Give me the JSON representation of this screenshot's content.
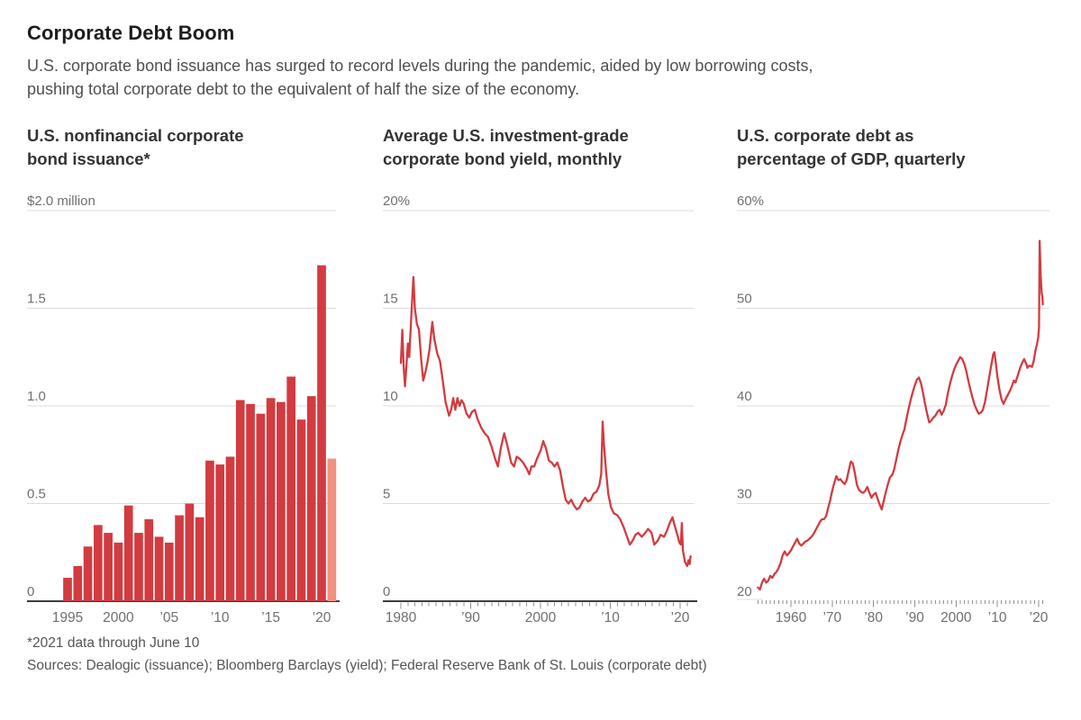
{
  "header": {
    "title": "Corporate Debt Boom",
    "subtitle_line1": "U.S. corporate bond issuance has surged to record levels during the pandemic, aided by low borrowing costs,",
    "subtitle_line2": "pushing total corporate debt to the equivalent of half the size of the economy."
  },
  "footer": {
    "footnote": "*2021 data through June 10",
    "sources": "Sources: Dealogic (issuance); Bloomberg Barclays (yield); Federal Reserve Bank of St. Louis (corporate debt)"
  },
  "colors": {
    "red": "#d23b40",
    "light_red": "#f2917f",
    "gridline": "#dcdcdc",
    "axis": "#3d3d3d",
    "tick": "#8e8e8e",
    "label": "#6f6f6f"
  },
  "chart_data": [
    {
      "type": "bar",
      "title": "U.S. nonfinancial corporate bond issuance*",
      "title_lines": [
        "U.S. nonfinancial corporate",
        "bond issuance*"
      ],
      "unit_label": "$2.0 million",
      "ylim": [
        0,
        2.0
      ],
      "yticks": [
        {
          "v": 0,
          "t": "0"
        },
        {
          "v": 0.5,
          "t": "0.5"
        },
        {
          "v": 1.0,
          "t": "1.0"
        },
        {
          "v": 1.5,
          "t": "1.5"
        },
        {
          "v": 2.0,
          "t": "$2.0 million"
        }
      ],
      "categories": [
        1995,
        1996,
        1997,
        1998,
        1999,
        2000,
        2001,
        2002,
        2003,
        2004,
        2005,
        2006,
        2007,
        2008,
        2009,
        2010,
        2011,
        2012,
        2013,
        2014,
        2015,
        2016,
        2017,
        2018,
        2019,
        2020,
        2021
      ],
      "values": [
        0.12,
        0.18,
        0.28,
        0.39,
        0.35,
        0.3,
        0.49,
        0.35,
        0.42,
        0.33,
        0.3,
        0.44,
        0.5,
        0.43,
        0.72,
        0.7,
        0.74,
        1.03,
        1.01,
        0.96,
        1.04,
        1.02,
        1.15,
        0.93,
        1.05,
        1.72,
        0.73
      ],
      "xticks": [
        {
          "i": 0,
          "t": "1995"
        },
        {
          "i": 5,
          "t": "2000"
        },
        {
          "i": 10,
          "t": "’05"
        },
        {
          "i": 15,
          "t": "’10"
        },
        {
          "i": 20,
          "t": "’15"
        },
        {
          "i": 25,
          "t": "’20"
        }
      ],
      "highlight_last_bar": true,
      "note": "2021 bar (partial year) shown in lighter red"
    },
    {
      "type": "line",
      "title": "Average U.S. investment-grade corporate bond yield, monthly",
      "title_lines": [
        "Average U.S. investment-grade",
        "corporate bond yield, monthly"
      ],
      "unit_label": "20%",
      "ylim": [
        0,
        20
      ],
      "yticks": [
        {
          "v": 0,
          "t": "0"
        },
        {
          "v": 5,
          "t": "5"
        },
        {
          "v": 10,
          "t": "10"
        },
        {
          "v": 15,
          "t": "15"
        },
        {
          "v": 20,
          "t": "20%"
        }
      ],
      "xlim": [
        1980,
        2021.5
      ],
      "xticks": [
        {
          "x": 1980,
          "t": "1980"
        },
        {
          "x": 1990,
          "t": "’90"
        },
        {
          "x": 2000,
          "t": "2000"
        },
        {
          "x": 2010,
          "t": "’10"
        },
        {
          "x": 2020,
          "t": "’20"
        }
      ],
      "points": [
        [
          1980.0,
          12.2
        ],
        [
          1980.2,
          13.9
        ],
        [
          1980.4,
          12.0
        ],
        [
          1980.6,
          11.0
        ],
        [
          1980.8,
          12.1
        ],
        [
          1981.0,
          13.2
        ],
        [
          1981.2,
          12.5
        ],
        [
          1981.5,
          14.6
        ],
        [
          1981.8,
          16.6
        ],
        [
          1982.0,
          15.0
        ],
        [
          1982.3,
          14.2
        ],
        [
          1982.6,
          13.9
        ],
        [
          1982.9,
          12.4
        ],
        [
          1983.2,
          11.3
        ],
        [
          1983.5,
          11.7
        ],
        [
          1983.8,
          12.2
        ],
        [
          1984.1,
          12.9
        ],
        [
          1984.5,
          14.3
        ],
        [
          1984.8,
          13.4
        ],
        [
          1985.2,
          12.7
        ],
        [
          1985.6,
          12.3
        ],
        [
          1986.0,
          11.3
        ],
        [
          1986.4,
          10.2
        ],
        [
          1986.9,
          9.5
        ],
        [
          1987.2,
          9.8
        ],
        [
          1987.5,
          10.4
        ],
        [
          1987.8,
          9.8
        ],
        [
          1988.1,
          10.4
        ],
        [
          1988.4,
          10.0
        ],
        [
          1988.7,
          10.3
        ],
        [
          1989.0,
          10.1
        ],
        [
          1989.4,
          9.6
        ],
        [
          1989.8,
          9.4
        ],
        [
          1990.2,
          9.7
        ],
        [
          1990.6,
          9.8
        ],
        [
          1991.0,
          9.3
        ],
        [
          1991.5,
          8.9
        ],
        [
          1992.0,
          8.6
        ],
        [
          1992.5,
          8.4
        ],
        [
          1993.0,
          7.9
        ],
        [
          1993.5,
          7.3
        ],
        [
          1993.9,
          6.9
        ],
        [
          1994.3,
          7.8
        ],
        [
          1994.8,
          8.6
        ],
        [
          1995.3,
          7.9
        ],
        [
          1995.8,
          7.1
        ],
        [
          1996.2,
          6.9
        ],
        [
          1996.6,
          7.4
        ],
        [
          1997.0,
          7.3
        ],
        [
          1997.5,
          7.1
        ],
        [
          1998.0,
          6.8
        ],
        [
          1998.4,
          6.5
        ],
        [
          1998.7,
          6.9
        ],
        [
          1999.1,
          6.9
        ],
        [
          1999.5,
          7.3
        ],
        [
          2000.0,
          7.7
        ],
        [
          2000.4,
          8.2
        ],
        [
          2000.8,
          7.8
        ],
        [
          2001.2,
          7.2
        ],
        [
          2001.6,
          7.1
        ],
        [
          2002.0,
          6.9
        ],
        [
          2002.4,
          7.1
        ],
        [
          2002.8,
          6.7
        ],
        [
          2003.2,
          5.9
        ],
        [
          2003.6,
          5.2
        ],
        [
          2004.0,
          5.0
        ],
        [
          2004.4,
          5.2
        ],
        [
          2004.8,
          4.9
        ],
        [
          2005.2,
          4.7
        ],
        [
          2005.6,
          4.8
        ],
        [
          2006.0,
          5.1
        ],
        [
          2006.4,
          5.3
        ],
        [
          2006.8,
          5.1
        ],
        [
          2007.2,
          5.2
        ],
        [
          2007.6,
          5.5
        ],
        [
          2008.0,
          5.6
        ],
        [
          2008.4,
          5.9
        ],
        [
          2008.7,
          6.5
        ],
        [
          2008.9,
          9.2
        ],
        [
          2009.1,
          8.0
        ],
        [
          2009.4,
          6.6
        ],
        [
          2009.7,
          5.5
        ],
        [
          2010.1,
          4.8
        ],
        [
          2010.5,
          4.5
        ],
        [
          2011.0,
          4.4
        ],
        [
          2011.4,
          4.2
        ],
        [
          2011.9,
          3.8
        ],
        [
          2012.3,
          3.4
        ],
        [
          2012.8,
          2.9
        ],
        [
          2013.2,
          3.1
        ],
        [
          2013.6,
          3.4
        ],
        [
          2014.0,
          3.5
        ],
        [
          2014.5,
          3.3
        ],
        [
          2015.0,
          3.5
        ],
        [
          2015.4,
          3.7
        ],
        [
          2015.9,
          3.5
        ],
        [
          2016.3,
          2.9
        ],
        [
          2016.8,
          3.1
        ],
        [
          2017.2,
          3.4
        ],
        [
          2017.7,
          3.3
        ],
        [
          2018.1,
          3.6
        ],
        [
          2018.5,
          4.0
        ],
        [
          2018.9,
          4.3
        ],
        [
          2019.2,
          3.9
        ],
        [
          2019.6,
          3.4
        ],
        [
          2019.9,
          3.0
        ],
        [
          2020.1,
          2.9
        ],
        [
          2020.25,
          4.0
        ],
        [
          2020.4,
          2.6
        ],
        [
          2020.7,
          2.0
        ],
        [
          2021.0,
          1.8
        ],
        [
          2021.2,
          2.1
        ],
        [
          2021.35,
          1.9
        ],
        [
          2021.5,
          2.3
        ]
      ]
    },
    {
      "type": "line",
      "title": "U.S. corporate debt as percentage of GDP, quarterly",
      "title_lines": [
        "U.S. corporate debt as",
        "percentage of GDP, quarterly"
      ],
      "unit_label": "60%",
      "ylim": [
        20,
        60
      ],
      "yticks": [
        {
          "v": 20,
          "t": "20"
        },
        {
          "v": 30,
          "t": "30"
        },
        {
          "v": 40,
          "t": "40"
        },
        {
          "v": 50,
          "t": "50"
        },
        {
          "v": 60,
          "t": "60%"
        }
      ],
      "xlim": [
        1952,
        2021
      ],
      "xticks": [
        {
          "x": 1960,
          "t": "1960"
        },
        {
          "x": 1970,
          "t": "’70"
        },
        {
          "x": 1980,
          "t": "’80"
        },
        {
          "x": 1990,
          "t": "’90"
        },
        {
          "x": 2000,
          "t": "2000"
        },
        {
          "x": 2010,
          "t": "’10"
        },
        {
          "x": 2020,
          "t": "’20"
        }
      ],
      "points": [
        [
          1952,
          21.4
        ],
        [
          1952.5,
          21.2
        ],
        [
          1953,
          21.9
        ],
        [
          1953.5,
          22.3
        ],
        [
          1954,
          21.9
        ],
        [
          1954.5,
          22.1
        ],
        [
          1955,
          22.6
        ],
        [
          1955.5,
          22.4
        ],
        [
          1956,
          22.8
        ],
        [
          1956.5,
          23.0
        ],
        [
          1957,
          23.4
        ],
        [
          1957.5,
          23.9
        ],
        [
          1958,
          24.7
        ],
        [
          1958.5,
          25.1
        ],
        [
          1959,
          24.7
        ],
        [
          1959.5,
          24.9
        ],
        [
          1960,
          25.2
        ],
        [
          1960.5,
          25.6
        ],
        [
          1961,
          26.0
        ],
        [
          1961.5,
          26.4
        ],
        [
          1962,
          25.9
        ],
        [
          1962.5,
          25.7
        ],
        [
          1963,
          25.9
        ],
        [
          1963.5,
          26.1
        ],
        [
          1964,
          26.2
        ],
        [
          1964.5,
          26.4
        ],
        [
          1965,
          26.6
        ],
        [
          1965.5,
          26.9
        ],
        [
          1966,
          27.3
        ],
        [
          1966.5,
          27.7
        ],
        [
          1967,
          28.1
        ],
        [
          1967.5,
          28.4
        ],
        [
          1968,
          28.4
        ],
        [
          1968.5,
          28.7
        ],
        [
          1969,
          29.5
        ],
        [
          1969.5,
          30.3
        ],
        [
          1970,
          31.3
        ],
        [
          1970.5,
          32.1
        ],
        [
          1971,
          32.8
        ],
        [
          1971.5,
          32.4
        ],
        [
          1972,
          32.5
        ],
        [
          1972.5,
          32.2
        ],
        [
          1973,
          32.0
        ],
        [
          1973.5,
          32.4
        ],
        [
          1974,
          33.4
        ],
        [
          1974.5,
          34.3
        ],
        [
          1975,
          34.1
        ],
        [
          1975.5,
          33.1
        ],
        [
          1976,
          31.9
        ],
        [
          1976.5,
          31.4
        ],
        [
          1977,
          31.2
        ],
        [
          1977.5,
          31.1
        ],
        [
          1978,
          31.3
        ],
        [
          1978.5,
          31.7
        ],
        [
          1979,
          31.1
        ],
        [
          1979.5,
          30.6
        ],
        [
          1980,
          30.9
        ],
        [
          1980.5,
          31.1
        ],
        [
          1981,
          30.5
        ],
        [
          1981.5,
          29.9
        ],
        [
          1982,
          29.4
        ],
        [
          1982.5,
          30.3
        ],
        [
          1983,
          31.2
        ],
        [
          1983.5,
          32.0
        ],
        [
          1984,
          32.7
        ],
        [
          1984.5,
          32.9
        ],
        [
          1985,
          33.5
        ],
        [
          1985.5,
          34.5
        ],
        [
          1986,
          35.5
        ],
        [
          1986.5,
          36.3
        ],
        [
          1987,
          37.0
        ],
        [
          1987.5,
          37.6
        ],
        [
          1988,
          38.7
        ],
        [
          1988.5,
          39.7
        ],
        [
          1989,
          40.6
        ],
        [
          1989.5,
          41.4
        ],
        [
          1990,
          42.1
        ],
        [
          1990.5,
          42.7
        ],
        [
          1991,
          42.9
        ],
        [
          1991.5,
          42.3
        ],
        [
          1992,
          41.3
        ],
        [
          1992.5,
          40.2
        ],
        [
          1993,
          39.2
        ],
        [
          1993.5,
          38.3
        ],
        [
          1994,
          38.5
        ],
        [
          1994.5,
          38.8
        ],
        [
          1995,
          39.0
        ],
        [
          1995.5,
          39.4
        ],
        [
          1996,
          39.6
        ],
        [
          1996.5,
          39.1
        ],
        [
          1997,
          39.5
        ],
        [
          1997.5,
          40.1
        ],
        [
          1998,
          41.3
        ],
        [
          1998.5,
          42.2
        ],
        [
          1999,
          43.0
        ],
        [
          1999.5,
          43.7
        ],
        [
          2000,
          44.2
        ],
        [
          2000.5,
          44.6
        ],
        [
          2001,
          45.0
        ],
        [
          2001.5,
          44.8
        ],
        [
          2002,
          44.3
        ],
        [
          2002.5,
          43.5
        ],
        [
          2003,
          42.5
        ],
        [
          2003.5,
          41.6
        ],
        [
          2004,
          40.8
        ],
        [
          2004.5,
          40.1
        ],
        [
          2005,
          39.6
        ],
        [
          2005.5,
          39.2
        ],
        [
          2006,
          39.3
        ],
        [
          2006.5,
          39.6
        ],
        [
          2007,
          40.4
        ],
        [
          2007.5,
          41.6
        ],
        [
          2008,
          42.9
        ],
        [
          2008.5,
          44.1
        ],
        [
          2009,
          45.3
        ],
        [
          2009.3,
          45.5
        ],
        [
          2009.6,
          44.5
        ],
        [
          2010,
          43.0
        ],
        [
          2010.5,
          41.7
        ],
        [
          2011,
          40.7
        ],
        [
          2011.5,
          40.2
        ],
        [
          2012,
          40.7
        ],
        [
          2012.5,
          41.1
        ],
        [
          2013,
          41.5
        ],
        [
          2013.5,
          42.0
        ],
        [
          2014,
          42.6
        ],
        [
          2014.4,
          42.4
        ],
        [
          2015,
          43.2
        ],
        [
          2015.5,
          43.9
        ],
        [
          2016,
          44.4
        ],
        [
          2016.5,
          44.8
        ],
        [
          2017,
          44.3
        ],
        [
          2017.3,
          43.9
        ],
        [
          2017.6,
          44.1
        ],
        [
          2018,
          44.1
        ],
        [
          2018.4,
          44.0
        ],
        [
          2018.8,
          44.6
        ],
        [
          2019.2,
          45.6
        ],
        [
          2019.6,
          46.3
        ],
        [
          2019.9,
          47.0
        ],
        [
          2020.1,
          48.0
        ],
        [
          2020.25,
          56.9
        ],
        [
          2020.5,
          53.3
        ],
        [
          2020.75,
          51.5
        ],
        [
          2020.9,
          51.2
        ],
        [
          2021,
          50.4
        ]
      ]
    }
  ]
}
